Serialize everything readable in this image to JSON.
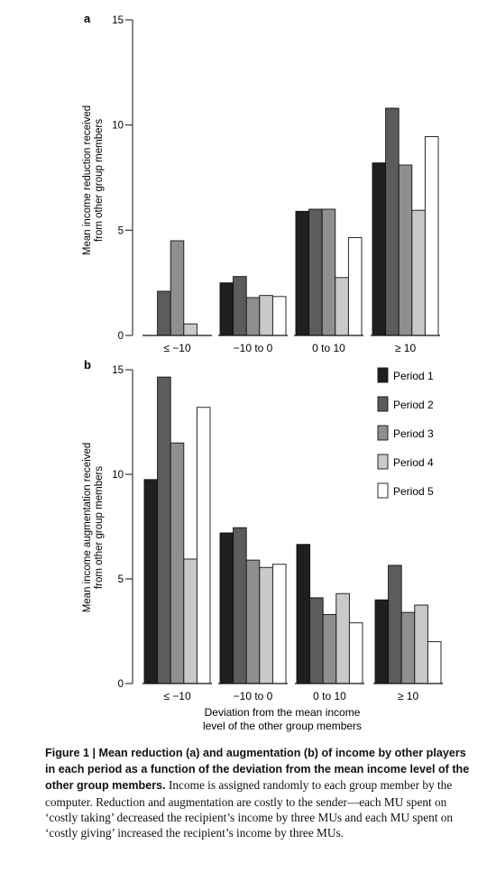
{
  "chart_data": [
    {
      "panel": "a",
      "type": "bar",
      "ylabel": "Mean income reduction received from other group members",
      "xlabel": "",
      "ylim": [
        0,
        15
      ],
      "yticks": [
        "0",
        "5",
        "10",
        "15"
      ],
      "yticks_values": [
        0,
        5,
        10,
        15
      ],
      "categories": [
        "≤ −10",
        "−10 to 0",
        "0 to 10",
        "≥ 10"
      ],
      "series": [
        {
          "name": "Period 1",
          "values": [
            0.0,
            2.5,
            5.9,
            8.2
          ]
        },
        {
          "name": "Period 2",
          "values": [
            2.1,
            2.8,
            6.0,
            10.8
          ]
        },
        {
          "name": "Period 3",
          "values": [
            4.5,
            1.8,
            6.0,
            8.1
          ]
        },
        {
          "name": "Period 4",
          "values": [
            0.55,
            1.9,
            2.75,
            5.95
          ]
        },
        {
          "name": "Period 5",
          "values": [
            0.0,
            1.85,
            4.65,
            9.45
          ]
        }
      ],
      "legend": "none"
    },
    {
      "panel": "b",
      "type": "bar",
      "ylabel": "Mean income augmentation received from other group members",
      "xlabel": "Deviation from the mean income level of the other group members",
      "ylim": [
        0,
        15
      ],
      "yticks": [
        "0",
        "5",
        "10",
        "15"
      ],
      "yticks_values": [
        0,
        5,
        10,
        15
      ],
      "categories": [
        "≤ −10",
        "−10 to 0",
        "0 to 10",
        "≥ 10"
      ],
      "series": [
        {
          "name": "Period 1",
          "values": [
            9.75,
            7.2,
            6.65,
            4.0
          ]
        },
        {
          "name": "Period 2",
          "values": [
            14.65,
            7.45,
            4.1,
            5.65
          ]
        },
        {
          "name": "Period 3",
          "values": [
            11.5,
            5.9,
            3.3,
            3.4
          ]
        },
        {
          "name": "Period 4",
          "values": [
            5.95,
            5.55,
            4.3,
            3.75
          ]
        },
        {
          "name": "Period 5",
          "values": [
            13.2,
            5.7,
            2.9,
            2.0
          ]
        }
      ],
      "legend": "top-right"
    }
  ],
  "colors": {
    "Period 1": "#1f1f1f",
    "Period 2": "#5c5c5c",
    "Period 3": "#8f8f8f",
    "Period 4": "#c9c9c9",
    "Period 5": "#ffffff"
  },
  "caption": {
    "head": "Figure 1 | Mean reduction (a) and augmentation (b) of income by other players in each period as a function of the deviation from the mean income level of the other group members.",
    "body": "Income is assigned randomly to each group member by the computer. Reduction and augmentation are costly to the sender—each MU spent on ‘costly taking’ decreased the recipient’s income by three MUs and each MU spent on ‘costly giving’ increased the recipient’s income by three MUs."
  }
}
